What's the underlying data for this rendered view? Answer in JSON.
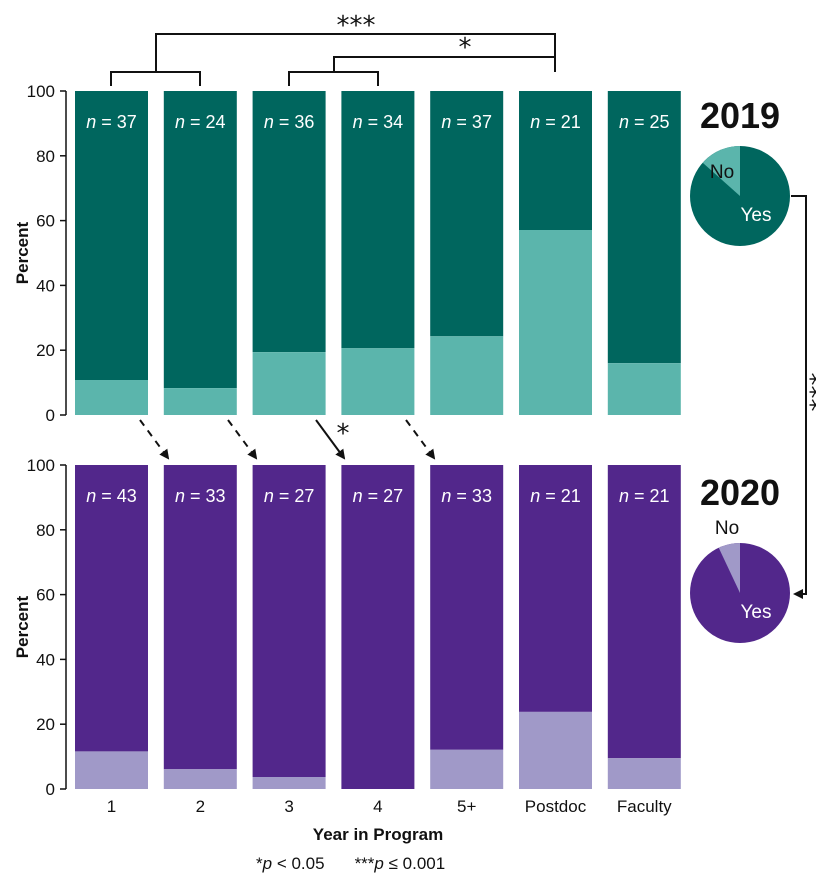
{
  "chart_data": [
    {
      "type": "bar",
      "stacked": true,
      "year_label": "2019",
      "ylabel": "Percent",
      "ylim": [
        0,
        100
      ],
      "yticks": [
        "0",
        "20",
        "40",
        "60",
        "80",
        "100"
      ],
      "categories": [
        "1",
        "2",
        "3",
        "4",
        "5+",
        "Postdoc",
        "Faculty"
      ],
      "n_labels": [
        "37",
        "24",
        "36",
        "34",
        "37",
        "21",
        "25"
      ],
      "series": [
        {
          "name": "No",
          "values": [
            10.8,
            8.3,
            19.4,
            20.6,
            24.3,
            57.1,
            16.0
          ]
        },
        {
          "name": "Yes",
          "values": [
            89.2,
            91.7,
            80.6,
            79.4,
            75.7,
            42.9,
            84.0
          ]
        }
      ],
      "colors": {
        "No": "#5bb5ac",
        "Yes": "#00665e"
      },
      "pie": {
        "slices": [
          {
            "label": "No",
            "value": 13.4
          },
          {
            "label": "Yes",
            "value": 86.6
          }
        ]
      }
    },
    {
      "type": "bar",
      "stacked": true,
      "year_label": "2020",
      "ylabel": "Percent",
      "ylim": [
        0,
        100
      ],
      "yticks": [
        "0",
        "20",
        "40",
        "60",
        "80",
        "100"
      ],
      "categories": [
        "1",
        "2",
        "3",
        "4",
        "5+",
        "Postdoc",
        "Faculty"
      ],
      "n_labels": [
        "43",
        "33",
        "27",
        "27",
        "33",
        "21",
        "21"
      ],
      "series": [
        {
          "name": "No",
          "values": [
            11.6,
            6.1,
            3.7,
            0.0,
            12.1,
            23.8,
            9.5
          ]
        },
        {
          "name": "Yes",
          "values": [
            88.4,
            93.9,
            96.3,
            100.0,
            87.9,
            76.2,
            90.5
          ]
        }
      ],
      "colors": {
        "No": "#a099c8",
        "Yes": "#52278b"
      },
      "pie": {
        "slices": [
          {
            "label": "No",
            "value": 7.0
          },
          {
            "label": "Yes",
            "value": 93.0
          }
        ]
      }
    }
  ],
  "xlabel": "Year in Program",
  "n_prefix": "n",
  "significance": {
    "bracket_top": "***",
    "bracket_mid": "*",
    "arrow_3_to_4": "*",
    "pie_arrow": "***"
  },
  "footnote": {
    "part1_stars": "*",
    "part1_p": "p",
    "part1_rest": " < 0.05",
    "part2_stars": "***",
    "part2_p": "p",
    "part2_rest": " ≤ 0.001"
  }
}
